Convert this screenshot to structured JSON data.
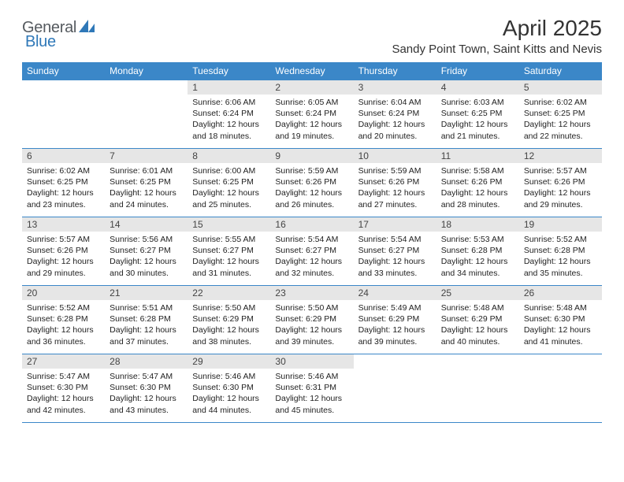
{
  "logo": {
    "text1": "General",
    "text2": "Blue"
  },
  "title": "April 2025",
  "location": "Sandy Point Town, Saint Kitts and Nevis",
  "colors": {
    "header_bg": "#3b87c8",
    "header_text": "#ffffff",
    "daynum_bg": "#e6e6e6",
    "row_border": "#3b87c8",
    "logo_gray": "#555a5f",
    "logo_blue": "#2f78b8",
    "page_bg": "#ffffff"
  },
  "day_headers": [
    "Sunday",
    "Monday",
    "Tuesday",
    "Wednesday",
    "Thursday",
    "Friday",
    "Saturday"
  ],
  "weeks": [
    [
      {
        "num": "",
        "sunrise": "",
        "sunset": "",
        "daylight": ""
      },
      {
        "num": "",
        "sunrise": "",
        "sunset": "",
        "daylight": ""
      },
      {
        "num": "1",
        "sunrise": "Sunrise: 6:06 AM",
        "sunset": "Sunset: 6:24 PM",
        "daylight": "Daylight: 12 hours and 18 minutes."
      },
      {
        "num": "2",
        "sunrise": "Sunrise: 6:05 AM",
        "sunset": "Sunset: 6:24 PM",
        "daylight": "Daylight: 12 hours and 19 minutes."
      },
      {
        "num": "3",
        "sunrise": "Sunrise: 6:04 AM",
        "sunset": "Sunset: 6:24 PM",
        "daylight": "Daylight: 12 hours and 20 minutes."
      },
      {
        "num": "4",
        "sunrise": "Sunrise: 6:03 AM",
        "sunset": "Sunset: 6:25 PM",
        "daylight": "Daylight: 12 hours and 21 minutes."
      },
      {
        "num": "5",
        "sunrise": "Sunrise: 6:02 AM",
        "sunset": "Sunset: 6:25 PM",
        "daylight": "Daylight: 12 hours and 22 minutes."
      }
    ],
    [
      {
        "num": "6",
        "sunrise": "Sunrise: 6:02 AM",
        "sunset": "Sunset: 6:25 PM",
        "daylight": "Daylight: 12 hours and 23 minutes."
      },
      {
        "num": "7",
        "sunrise": "Sunrise: 6:01 AM",
        "sunset": "Sunset: 6:25 PM",
        "daylight": "Daylight: 12 hours and 24 minutes."
      },
      {
        "num": "8",
        "sunrise": "Sunrise: 6:00 AM",
        "sunset": "Sunset: 6:25 PM",
        "daylight": "Daylight: 12 hours and 25 minutes."
      },
      {
        "num": "9",
        "sunrise": "Sunrise: 5:59 AM",
        "sunset": "Sunset: 6:26 PM",
        "daylight": "Daylight: 12 hours and 26 minutes."
      },
      {
        "num": "10",
        "sunrise": "Sunrise: 5:59 AM",
        "sunset": "Sunset: 6:26 PM",
        "daylight": "Daylight: 12 hours and 27 minutes."
      },
      {
        "num": "11",
        "sunrise": "Sunrise: 5:58 AM",
        "sunset": "Sunset: 6:26 PM",
        "daylight": "Daylight: 12 hours and 28 minutes."
      },
      {
        "num": "12",
        "sunrise": "Sunrise: 5:57 AM",
        "sunset": "Sunset: 6:26 PM",
        "daylight": "Daylight: 12 hours and 29 minutes."
      }
    ],
    [
      {
        "num": "13",
        "sunrise": "Sunrise: 5:57 AM",
        "sunset": "Sunset: 6:26 PM",
        "daylight": "Daylight: 12 hours and 29 minutes."
      },
      {
        "num": "14",
        "sunrise": "Sunrise: 5:56 AM",
        "sunset": "Sunset: 6:27 PM",
        "daylight": "Daylight: 12 hours and 30 minutes."
      },
      {
        "num": "15",
        "sunrise": "Sunrise: 5:55 AM",
        "sunset": "Sunset: 6:27 PM",
        "daylight": "Daylight: 12 hours and 31 minutes."
      },
      {
        "num": "16",
        "sunrise": "Sunrise: 5:54 AM",
        "sunset": "Sunset: 6:27 PM",
        "daylight": "Daylight: 12 hours and 32 minutes."
      },
      {
        "num": "17",
        "sunrise": "Sunrise: 5:54 AM",
        "sunset": "Sunset: 6:27 PM",
        "daylight": "Daylight: 12 hours and 33 minutes."
      },
      {
        "num": "18",
        "sunrise": "Sunrise: 5:53 AM",
        "sunset": "Sunset: 6:28 PM",
        "daylight": "Daylight: 12 hours and 34 minutes."
      },
      {
        "num": "19",
        "sunrise": "Sunrise: 5:52 AM",
        "sunset": "Sunset: 6:28 PM",
        "daylight": "Daylight: 12 hours and 35 minutes."
      }
    ],
    [
      {
        "num": "20",
        "sunrise": "Sunrise: 5:52 AM",
        "sunset": "Sunset: 6:28 PM",
        "daylight": "Daylight: 12 hours and 36 minutes."
      },
      {
        "num": "21",
        "sunrise": "Sunrise: 5:51 AM",
        "sunset": "Sunset: 6:28 PM",
        "daylight": "Daylight: 12 hours and 37 minutes."
      },
      {
        "num": "22",
        "sunrise": "Sunrise: 5:50 AM",
        "sunset": "Sunset: 6:29 PM",
        "daylight": "Daylight: 12 hours and 38 minutes."
      },
      {
        "num": "23",
        "sunrise": "Sunrise: 5:50 AM",
        "sunset": "Sunset: 6:29 PM",
        "daylight": "Daylight: 12 hours and 39 minutes."
      },
      {
        "num": "24",
        "sunrise": "Sunrise: 5:49 AM",
        "sunset": "Sunset: 6:29 PM",
        "daylight": "Daylight: 12 hours and 39 minutes."
      },
      {
        "num": "25",
        "sunrise": "Sunrise: 5:48 AM",
        "sunset": "Sunset: 6:29 PM",
        "daylight": "Daylight: 12 hours and 40 minutes."
      },
      {
        "num": "26",
        "sunrise": "Sunrise: 5:48 AM",
        "sunset": "Sunset: 6:30 PM",
        "daylight": "Daylight: 12 hours and 41 minutes."
      }
    ],
    [
      {
        "num": "27",
        "sunrise": "Sunrise: 5:47 AM",
        "sunset": "Sunset: 6:30 PM",
        "daylight": "Daylight: 12 hours and 42 minutes."
      },
      {
        "num": "28",
        "sunrise": "Sunrise: 5:47 AM",
        "sunset": "Sunset: 6:30 PM",
        "daylight": "Daylight: 12 hours and 43 minutes."
      },
      {
        "num": "29",
        "sunrise": "Sunrise: 5:46 AM",
        "sunset": "Sunset: 6:30 PM",
        "daylight": "Daylight: 12 hours and 44 minutes."
      },
      {
        "num": "30",
        "sunrise": "Sunrise: 5:46 AM",
        "sunset": "Sunset: 6:31 PM",
        "daylight": "Daylight: 12 hours and 45 minutes."
      },
      {
        "num": "",
        "sunrise": "",
        "sunset": "",
        "daylight": ""
      },
      {
        "num": "",
        "sunrise": "",
        "sunset": "",
        "daylight": ""
      },
      {
        "num": "",
        "sunrise": "",
        "sunset": "",
        "daylight": ""
      }
    ]
  ]
}
